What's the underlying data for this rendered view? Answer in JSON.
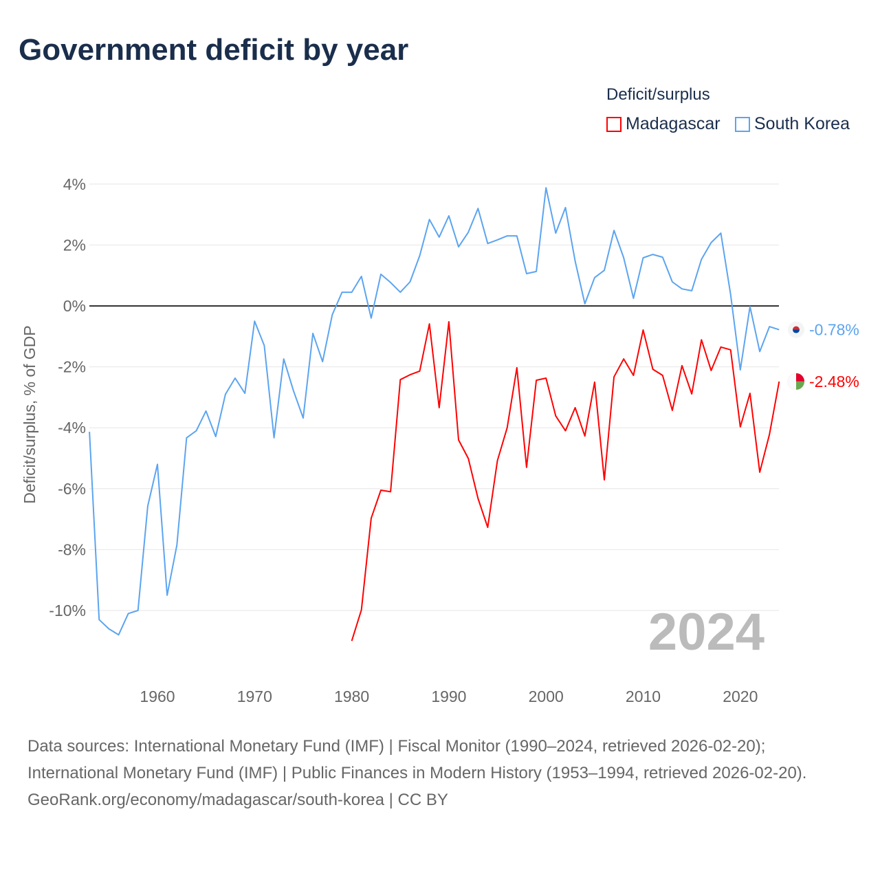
{
  "title": "Government deficit by year",
  "chart_data": {
    "type": "line",
    "title": "Government deficit by year",
    "ylabel": "Deficit/surplus, % of GDP",
    "xlabel": "",
    "ylim": [
      -10,
      4
    ],
    "yticks": [
      4,
      2,
      0,
      -2,
      -4,
      -6,
      -8,
      -10
    ],
    "ytick_labels": [
      "4%",
      "2%",
      "0%",
      "-2%",
      "-4%",
      "-6%",
      "-8%",
      "-10%"
    ],
    "xticks": [
      1960,
      1970,
      1980,
      1990,
      2000,
      2010,
      2020
    ],
    "xtick_labels": [
      "1960",
      "1970",
      "1980",
      "1990",
      "2000",
      "2010",
      "2020"
    ],
    "xlim": [
      1953,
      2024
    ],
    "grid": true,
    "legend_title": "Deficit/surplus",
    "legend_position": "top-right",
    "year_watermark": "2024",
    "series": [
      {
        "name": "Madagascar",
        "color": "#ff0000",
        "end_label": "-2.48%",
        "x_start": 1980,
        "values": [
          -11.0,
          -9.98,
          -6.97,
          -6.05,
          -6.1,
          -2.42,
          -2.26,
          -2.14,
          -0.59,
          -3.34,
          -0.52,
          -4.4,
          -5.01,
          -6.32,
          -7.27,
          -5.08,
          -4.0,
          -2.03,
          -5.3,
          -2.44,
          -2.37,
          -3.61,
          -4.1,
          -3.34,
          -4.27,
          -2.5,
          -5.71,
          -2.33,
          -1.74,
          -2.28,
          -0.79,
          -2.08,
          -2.28,
          -3.43,
          -1.96,
          -2.89,
          -1.11,
          -2.12,
          -1.35,
          -1.44,
          -3.97,
          -2.87,
          -5.46,
          -4.22,
          -2.48
        ]
      },
      {
        "name": "South Korea",
        "color": "#5ba4f0",
        "end_label": "-0.78%",
        "x_start": 1953,
        "values": [
          -4.13,
          -10.3,
          -10.6,
          -10.8,
          -10.1,
          -10.0,
          -6.57,
          -5.2,
          -9.5,
          -7.85,
          -4.33,
          -4.1,
          -3.45,
          -4.29,
          -2.9,
          -2.37,
          -2.87,
          -0.5,
          -1.3,
          -4.33,
          -1.74,
          -2.78,
          -3.68,
          -0.9,
          -1.83,
          -0.29,
          0.45,
          0.45,
          0.97,
          -0.4,
          1.04,
          0.77,
          0.45,
          0.79,
          1.65,
          2.84,
          2.26,
          2.96,
          1.94,
          2.42,
          3.2,
          2.05,
          2.17,
          2.3,
          2.3,
          1.06,
          1.13,
          3.88,
          2.39,
          3.23,
          1.47,
          0.07,
          0.93,
          1.17,
          2.48,
          1.58,
          0.25,
          1.58,
          1.69,
          1.6,
          0.79,
          0.56,
          0.5,
          1.53,
          2.08,
          2.39,
          0.38,
          -2.1,
          -0.02,
          -1.5,
          -0.68,
          -0.78
        ]
      }
    ]
  },
  "footer": {
    "sources": "Data sources: International Monetary Fund (IMF) | Fiscal Monitor (1990–2024, retrieved 2026-02-20); International Monetary Fund (IMF) | Public Finances in Modern History (1953–1994, retrieved 2026-02-20).",
    "link": "GeoRank.org/economy/madagascar/south-korea | CC BY"
  }
}
